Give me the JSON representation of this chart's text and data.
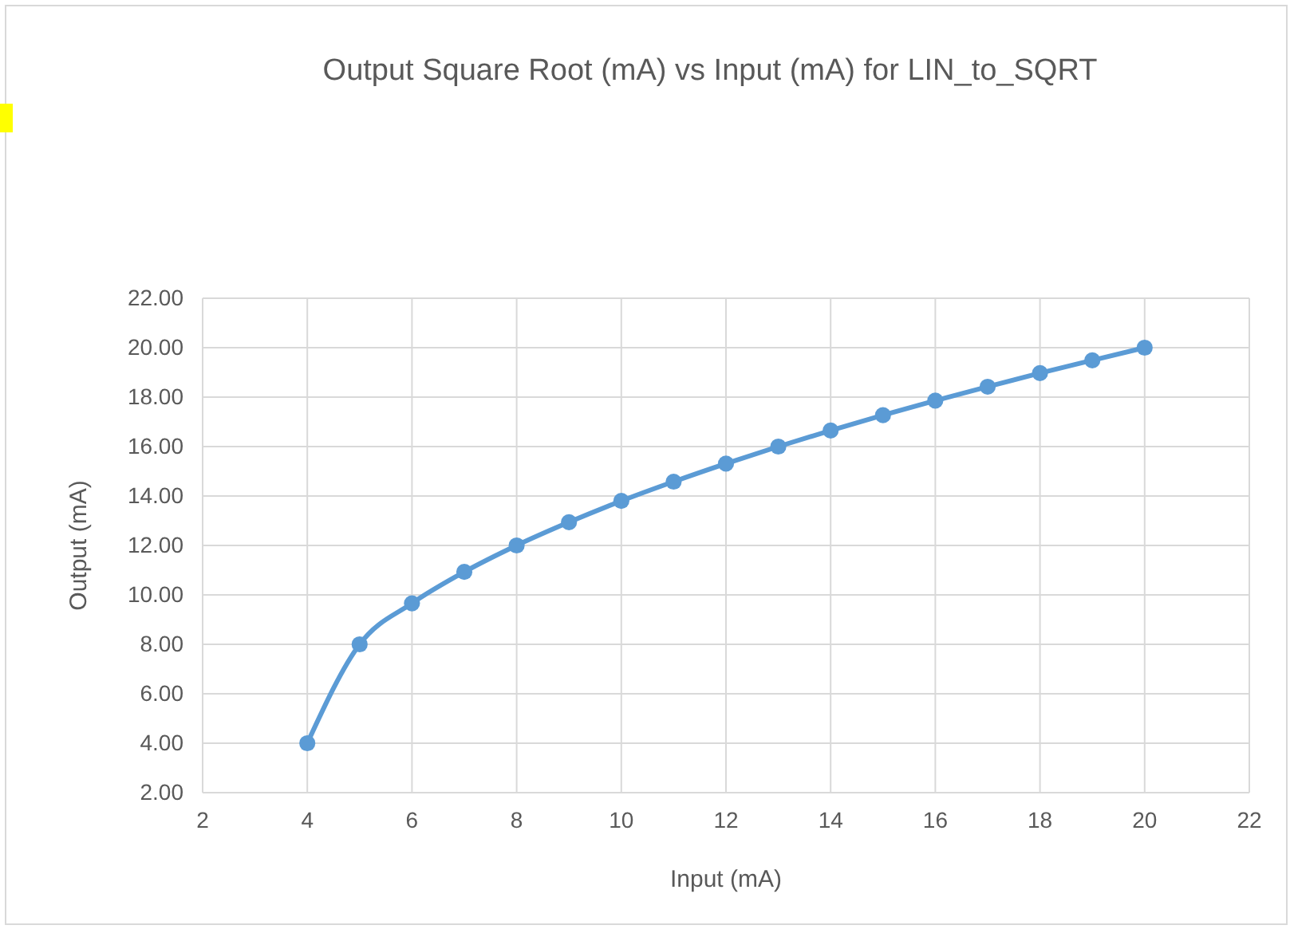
{
  "chart_data": {
    "type": "line",
    "title": "Output Square Root (mA) vs Input (mA) for LIN_to_SQRT",
    "xlabel": "Input (mA)",
    "ylabel": "Output (mA)",
    "x": [
      4,
      5,
      6,
      7,
      8,
      9,
      10,
      11,
      12,
      13,
      14,
      15,
      16,
      17,
      18,
      19,
      20
    ],
    "series": [
      {
        "color": "#5b9bd5",
        "values": [
          4.0,
          8.0,
          9.66,
          10.93,
          12.0,
          12.94,
          13.8,
          14.58,
          15.31,
          16.0,
          16.65,
          17.27,
          17.86,
          18.42,
          18.97,
          19.49,
          20.0
        ]
      }
    ],
    "xlim": [
      2,
      22
    ],
    "xticks": [
      2,
      4,
      6,
      8,
      10,
      12,
      14,
      16,
      18,
      20,
      22
    ],
    "ylim": [
      2,
      22
    ],
    "yticks": [
      {
        "value": 2,
        "label": "2.00"
      },
      {
        "value": 4,
        "label": "4.00"
      },
      {
        "value": 6,
        "label": "6.00"
      },
      {
        "value": 8,
        "label": "8.00"
      },
      {
        "value": 10,
        "label": "10.00"
      },
      {
        "value": 12,
        "label": "12.00"
      },
      {
        "value": 14,
        "label": "14.00"
      },
      {
        "value": 16,
        "label": "16.00"
      },
      {
        "value": 18,
        "label": "18.00"
      },
      {
        "value": 20,
        "label": "20.00"
      },
      {
        "value": 22,
        "label": "22.00"
      }
    ],
    "grid": true,
    "marker": "circle",
    "line_style": "solid"
  }
}
